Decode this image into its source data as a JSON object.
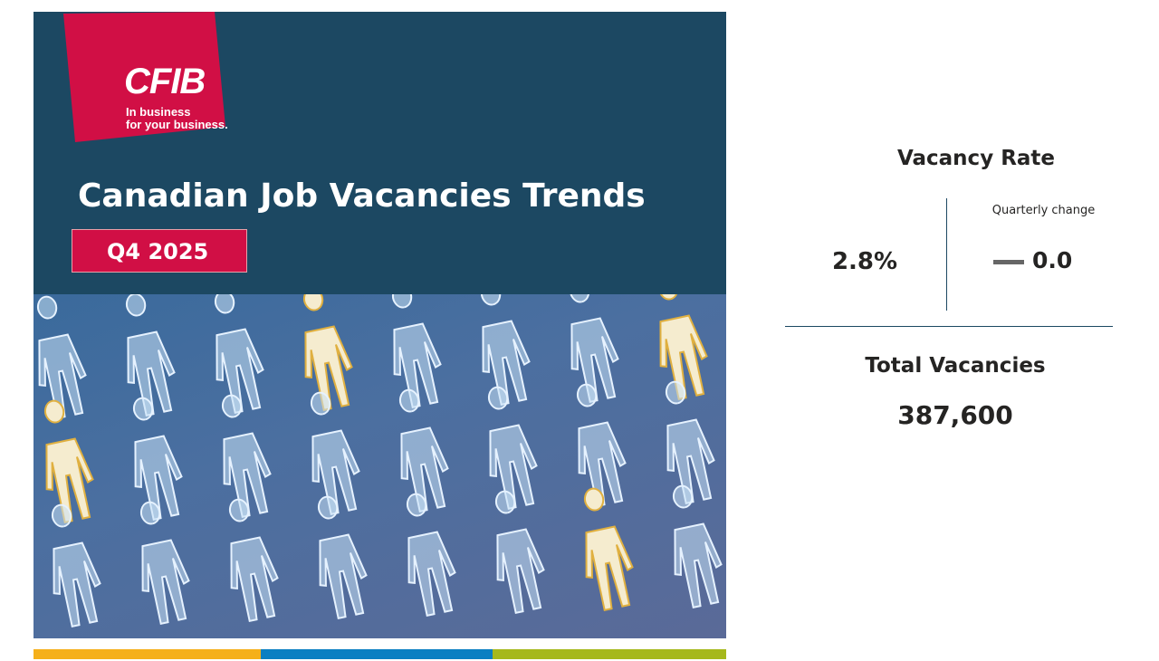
{
  "header": {
    "logo_text": "CFIB",
    "logo_tagline_line1": "In business",
    "logo_tagline_line2": "for your business.",
    "title": "Canadian Job Vacancies Trends",
    "period": "Q4 2025"
  },
  "kpis": {
    "vacancy_rate_label": "Vacancy Rate",
    "vacancy_rate_value": "2.8%",
    "quarterly_change_label": "Quarterly change",
    "quarterly_change_icon": "dash-icon",
    "quarterly_change_value": "0.0",
    "total_vacancies_label": "Total Vacancies",
    "total_vacancies_value": "387,600"
  },
  "colors": {
    "banner": "#1c4862",
    "brand_red": "#d10f45",
    "stripe_yellow": "#f5b01a",
    "stripe_blue": "#0a7fc2",
    "stripe_green": "#a6b81c"
  }
}
